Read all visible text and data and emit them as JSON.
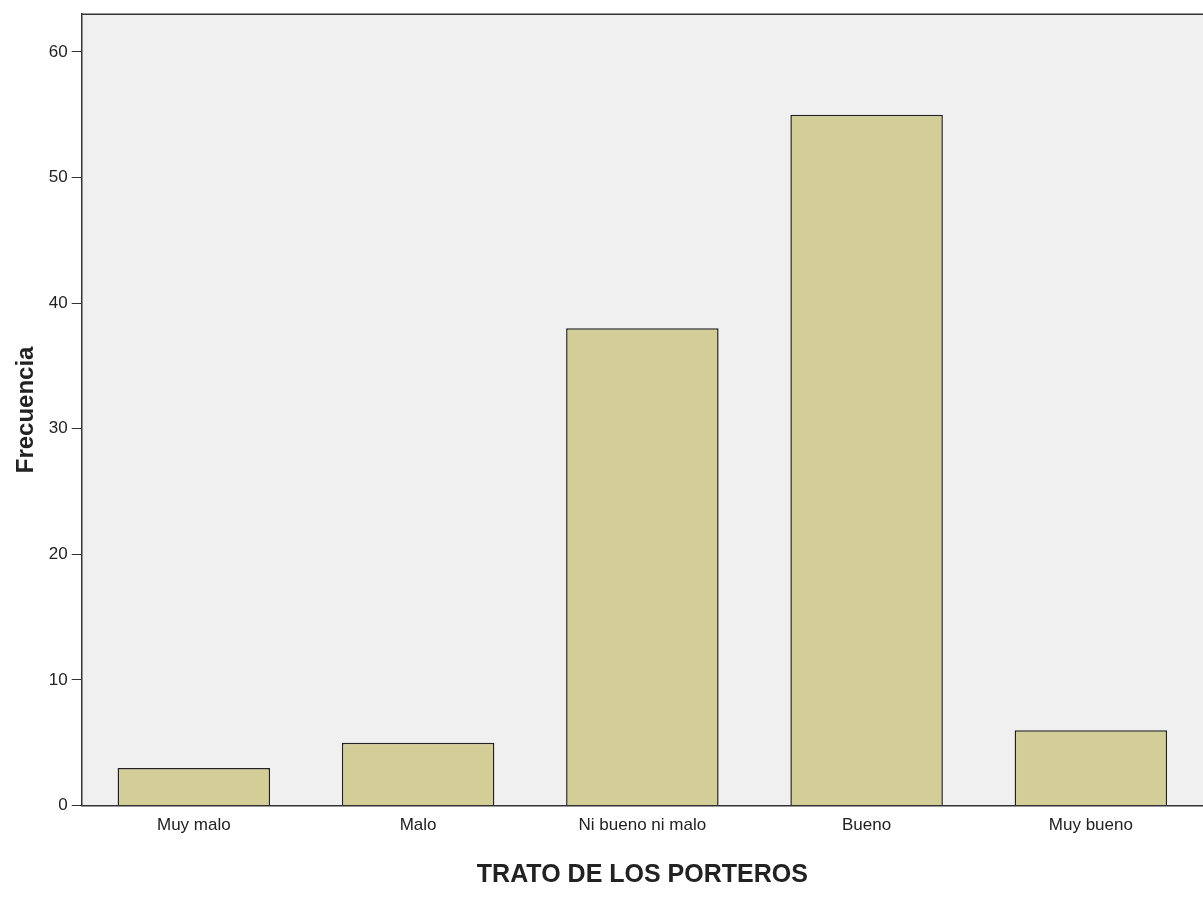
{
  "chart_data": {
    "type": "bar",
    "xlabel": "TRATO DE LOS PORTEROS",
    "ylabel": "Frecuencia",
    "categories": [
      "Muy malo",
      "Malo",
      "Ni bueno ni malo",
      "Bueno",
      "Muy bueno"
    ],
    "values": [
      3,
      5,
      38,
      55,
      6
    ],
    "color": "#d3ce97",
    "ylim": [
      0,
      63
    ],
    "yticks": [
      0,
      10,
      20,
      30,
      40,
      50,
      60
    ],
    "grid": false,
    "legend": false
  }
}
